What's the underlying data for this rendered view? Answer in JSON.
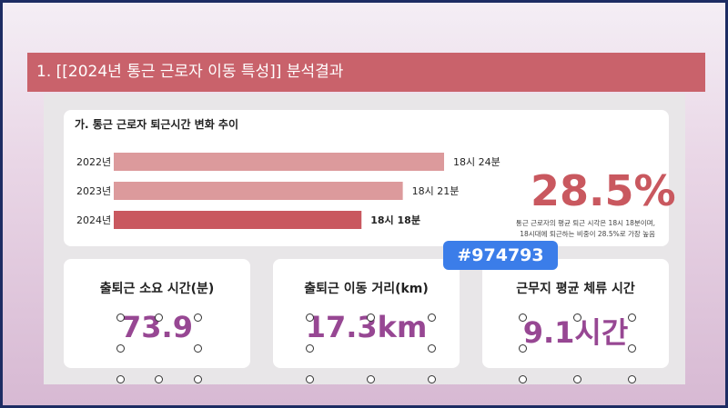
{
  "header": {
    "title": "1. [[2024년 통근 근로자 이동 특성]] 분석결과"
  },
  "chart_data": {
    "type": "bar",
    "title": "가. 통근 근로자 퇴근시간 변화 추이",
    "categories": [
      "2022년",
      "2023년",
      "2024년"
    ],
    "values": [
      24,
      21,
      18
    ],
    "value_labels": [
      "18시 24분",
      "18시 21분",
      "18시 18분"
    ],
    "colors": [
      "#dc9a9c",
      "#dc9a9c",
      "#c9585f"
    ]
  },
  "highlight": {
    "value": "28.5%",
    "note": [
      "통근 근로자의 평균 퇴근 시각은 18시 18분이며,",
      "18시대에 퇴근하는 비중이 28.5%로 가장 높음"
    ]
  },
  "cards": [
    {
      "label": "출퇴근 소요 시간(분)",
      "value": "73.9"
    },
    {
      "label": "출퇴근 이동 거리(km)",
      "value": "17.3km"
    },
    {
      "label": "근무지 평균 체류 시간",
      "value": "9.1시간"
    }
  ],
  "color_tooltip": "#974793"
}
